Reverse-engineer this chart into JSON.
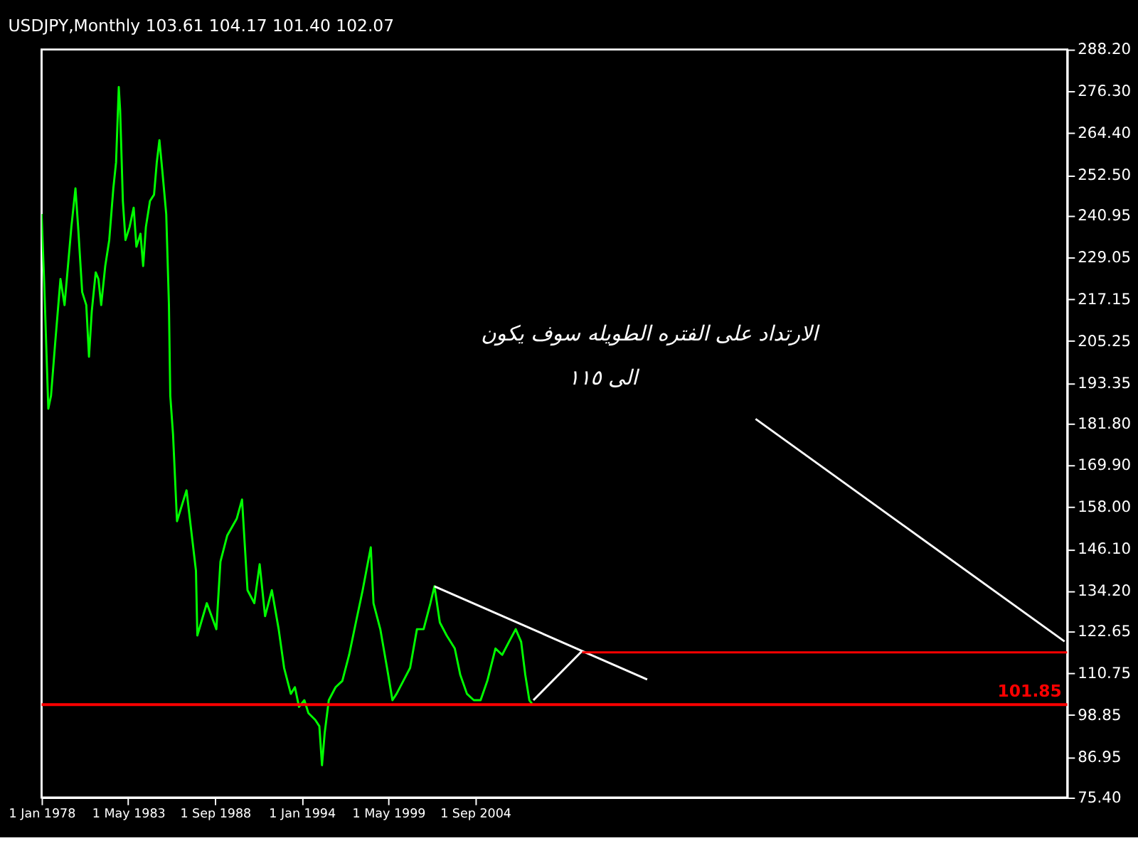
{
  "chart_data": {
    "type": "line",
    "title": "USDJPY,Monthly 103.61 104.17 101.40 102.07",
    "annotations": [
      "الارتداد على الفتره الطويله سوف يكون",
      "الى ١١٥"
    ],
    "xlim": [
      "1978-01",
      "2041-02"
    ],
    "xticks": [
      {
        "value": "1978-01",
        "label": "1 Jan 1978"
      },
      {
        "value": "1983-05",
        "label": "1 May 1983"
      },
      {
        "value": "1988-09",
        "label": "1 Sep 1988"
      },
      {
        "value": "1994-01",
        "label": "1 Jan 1994"
      },
      {
        "value": "1999-05",
        "label": "1 May 1999"
      },
      {
        "value": "2004-09",
        "label": "1 Sep 2004"
      }
    ],
    "ylim": [
      75.4,
      288.2
    ],
    "yticks": [
      {
        "value": 288.2,
        "label": "288.20"
      },
      {
        "value": 276.3,
        "label": "276.30"
      },
      {
        "value": 264.4,
        "label": "264.40"
      },
      {
        "value": 252.5,
        "label": "252.50"
      },
      {
        "value": 240.95,
        "label": "240.95"
      },
      {
        "value": 229.05,
        "label": "229.05"
      },
      {
        "value": 217.15,
        "label": "217.15"
      },
      {
        "value": 205.25,
        "label": "205.25"
      },
      {
        "value": 193.35,
        "label": "193.35"
      },
      {
        "value": 181.8,
        "label": "181.80"
      },
      {
        "value": 169.9,
        "label": "169.90"
      },
      {
        "value": 158.0,
        "label": "158.00"
      },
      {
        "value": 146.1,
        "label": "146.10"
      },
      {
        "value": 134.2,
        "label": "134.20"
      },
      {
        "value": 122.65,
        "label": "122.65"
      },
      {
        "value": 110.75,
        "label": "110.75"
      },
      {
        "value": 98.85,
        "label": "98.85"
      },
      {
        "value": 86.95,
        "label": "86.95"
      },
      {
        "value": 75.4,
        "label": "75.40"
      }
    ],
    "grid": false,
    "ref_lines": [
      {
        "axis": "y",
        "value": 101.85,
        "label": "101.85",
        "color": "#ff0000"
      }
    ],
    "series": [
      {
        "type": "line",
        "color": "#00ff00",
        "x": [
          "1978-01",
          "1978-03",
          "1978-06",
          "1978-08",
          "1978-11",
          "1979-03",
          "1979-06",
          "1979-11",
          "1980-02",
          "1980-04",
          "1980-07",
          "1980-10",
          "1980-12",
          "1981-02",
          "1981-05",
          "1981-07",
          "1981-09",
          "1981-12",
          "1982-03",
          "1982-06",
          "1982-08",
          "1982-10",
          "1982-11",
          "1983-01",
          "1983-03",
          "1983-06",
          "1983-09",
          "1983-11",
          "1984-02",
          "1984-04",
          "1984-06",
          "1984-09",
          "1984-12",
          "1985-02",
          "1985-04",
          "1985-06",
          "1985-09",
          "1985-11",
          "1985-12",
          "1986-02",
          "1986-05",
          "1986-12",
          "1987-07",
          "1987-08",
          "1988-03",
          "1988-10",
          "1989-01",
          "1989-06",
          "1990-01",
          "1990-05",
          "1990-09",
          "1991-02",
          "1991-06",
          "1991-10",
          "1992-03",
          "1992-08",
          "1992-12",
          "1993-05",
          "1993-08",
          "1993-11",
          "1994-03",
          "1994-06",
          "1994-11",
          "1995-02",
          "1995-04",
          "1995-06",
          "1995-09",
          "1996-02",
          "1996-07",
          "1996-12",
          "1997-05",
          "1997-10",
          "1998-04",
          "1998-06",
          "1998-11",
          "1999-04",
          "1999-08",
          "1999-11",
          "2000-04",
          "2000-09",
          "2001-02",
          "2001-07",
          "2001-12",
          "2002-03",
          "2002-07",
          "2002-12",
          "2003-06",
          "2003-10",
          "2004-03",
          "2004-08",
          "2005-01",
          "2005-06",
          "2005-12",
          "2006-05",
          "2006-10",
          "2007-03",
          "2007-07",
          "2007-10",
          "2008-01",
          "2008-03"
        ],
        "values": [
          241.4,
          221.8,
          186.0,
          189.7,
          204.5,
          222.9,
          215.5,
          237.7,
          248.7,
          237.7,
          219.2,
          215.5,
          200.8,
          213.7,
          224.8,
          222.9,
          215.5,
          226.6,
          234.0,
          248.7,
          256.1,
          277.5,
          270.9,
          245.1,
          234.0,
          237.7,
          243.2,
          232.1,
          235.8,
          226.6,
          237.7,
          245.1,
          246.9,
          256.1,
          262.4,
          254.3,
          241.4,
          215.5,
          189.7,
          178.7,
          154.0,
          162.8,
          139.9,
          121.5,
          130.7,
          123.3,
          142.5,
          149.9,
          154.7,
          160.2,
          134.4,
          130.7,
          141.8,
          127.0,
          134.4,
          123.3,
          112.3,
          104.9,
          106.8,
          101.2,
          103.1,
          99.4,
          97.5,
          95.7,
          84.6,
          93.8,
          103.1,
          106.8,
          108.6,
          116.0,
          125.2,
          134.4,
          146.6,
          130.7,
          123.3,
          112.3,
          103.1,
          104.9,
          108.6,
          112.3,
          123.3,
          123.3,
          130.7,
          135.5,
          125.2,
          121.5,
          117.8,
          110.4,
          104.9,
          103.1,
          103.1,
          108.6,
          117.8,
          116.0,
          119.7,
          123.3,
          119.7,
          110.4,
          103.1,
          102.1
        ]
      },
      {
        "type": "line",
        "color": "#ffffff",
        "x": [
          "2002-03",
          "2015-04"
        ],
        "values": [
          135.5,
          109.0
        ]
      },
      {
        "type": "line",
        "color": "#ffffff",
        "x": [
          "2021-12",
          "2040-12"
        ],
        "values": [
          183.1,
          119.8
        ]
      },
      {
        "type": "line",
        "color": "#ffffff",
        "x": [
          "2008-04",
          "2011-04"
        ],
        "values": [
          103.1,
          117.1
        ]
      },
      {
        "type": "line",
        "color": "#ff0000",
        "x": [
          "2011-04",
          "2041-02"
        ],
        "values": [
          116.7,
          116.7
        ]
      }
    ]
  }
}
